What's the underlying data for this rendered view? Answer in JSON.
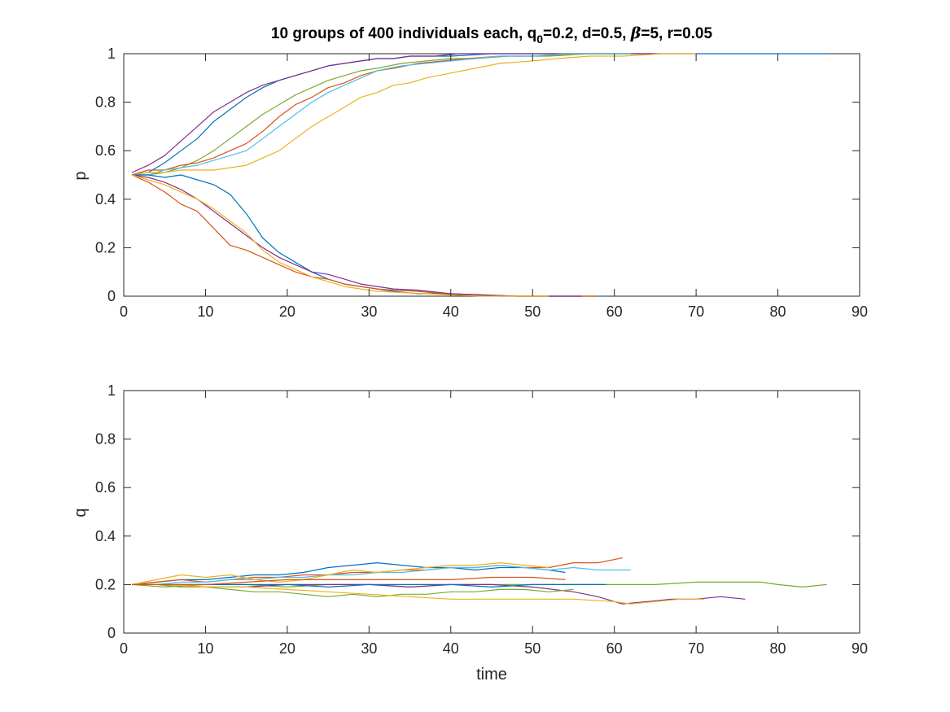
{
  "title": {
    "prefix": "10 groups of 400 individuals each, q",
    "subscript": "0",
    "middle": "=0.2, d=0.5, ",
    "beta_symbol": "β",
    "suffix": "=5, r=0.05"
  },
  "colors": [
    "#0072BD",
    "#D95319",
    "#EDB120",
    "#7E2F8E",
    "#77AC30",
    "#4DBEEE"
  ],
  "chart_data": [
    {
      "type": "line",
      "xlabel": "",
      "ylabel": "p",
      "xlim": [
        0,
        90
      ],
      "ylim": [
        0,
        1
      ],
      "xticks": [
        0,
        10,
        20,
        30,
        40,
        50,
        60,
        70,
        80,
        90
      ],
      "yticks": [
        0,
        0.2,
        0.4,
        0.6,
        0.8,
        1
      ],
      "ytick_labels": [
        "0",
        "0.2",
        "0.4",
        "0.6",
        "0.8",
        "1"
      ],
      "grid": false,
      "series": [
        {
          "color": "#0072BD",
          "x": [
            1,
            3,
            5,
            7,
            9,
            11,
            13,
            15,
            17,
            19,
            21,
            23,
            25,
            27,
            29,
            31,
            33,
            35,
            37,
            40,
            45,
            50,
            55,
            60,
            65,
            70,
            75,
            80,
            86
          ],
          "y": [
            0.5,
            0.51,
            0.55,
            0.6,
            0.65,
            0.72,
            0.77,
            0.82,
            0.86,
            0.89,
            0.91,
            0.93,
            0.95,
            0.96,
            0.97,
            0.98,
            0.98,
            0.99,
            0.99,
            0.99,
            1,
            1,
            1,
            1,
            1,
            1,
            1,
            1,
            1
          ]
        },
        {
          "color": "#7E2F8E",
          "x": [
            1,
            3,
            5,
            7,
            9,
            11,
            13,
            15,
            17,
            19,
            21,
            23,
            25,
            27,
            29,
            31,
            33,
            35,
            38,
            41,
            45,
            50,
            55,
            60,
            65
          ],
          "y": [
            0.51,
            0.54,
            0.58,
            0.64,
            0.7,
            0.76,
            0.8,
            0.84,
            0.87,
            0.89,
            0.91,
            0.93,
            0.95,
            0.96,
            0.97,
            0.98,
            0.98,
            0.99,
            0.99,
            1,
            1,
            1,
            1,
            1,
            1
          ]
        },
        {
          "color": "#77AC30",
          "x": [
            1,
            3,
            5,
            7,
            9,
            11,
            13,
            15,
            17,
            19,
            21,
            23,
            25,
            27,
            29,
            31,
            34,
            37,
            40,
            43,
            47,
            52,
            57,
            62
          ],
          "y": [
            0.5,
            0.5,
            0.51,
            0.53,
            0.56,
            0.6,
            0.65,
            0.7,
            0.75,
            0.79,
            0.83,
            0.86,
            0.89,
            0.91,
            0.93,
            0.94,
            0.96,
            0.97,
            0.98,
            0.98,
            0.99,
            0.99,
            1,
            1
          ]
        },
        {
          "color": "#D95319",
          "x": [
            1,
            3,
            5,
            7,
            9,
            11,
            13,
            15,
            17,
            19,
            21,
            23,
            25,
            27,
            29,
            31,
            33,
            36,
            39,
            42,
            46,
            50,
            55,
            60
          ],
          "y": [
            0.5,
            0.52,
            0.52,
            0.54,
            0.55,
            0.57,
            0.6,
            0.63,
            0.68,
            0.74,
            0.79,
            0.82,
            0.86,
            0.88,
            0.91,
            0.93,
            0.94,
            0.96,
            0.97,
            0.98,
            0.99,
            0.99,
            1,
            1
          ]
        },
        {
          "color": "#4DBEEE",
          "x": [
            1,
            3,
            5,
            7,
            9,
            11,
            13,
            15,
            17,
            19,
            21,
            23,
            25,
            27,
            29,
            31,
            34,
            37,
            40,
            43,
            46,
            50,
            54,
            58,
            62
          ],
          "y": [
            0.5,
            0.5,
            0.52,
            0.53,
            0.54,
            0.56,
            0.58,
            0.6,
            0.65,
            0.7,
            0.75,
            0.8,
            0.84,
            0.87,
            0.9,
            0.93,
            0.95,
            0.96,
            0.97,
            0.98,
            0.99,
            0.99,
            1,
            1,
            1
          ]
        },
        {
          "color": "#EDB120",
          "x": [
            1,
            3,
            5,
            7,
            9,
            11,
            13,
            15,
            17,
            19,
            21,
            23,
            25,
            27,
            29,
            31,
            33,
            35,
            37,
            40,
            43,
            46,
            50,
            53,
            57,
            61,
            66,
            70
          ],
          "y": [
            0.5,
            0.51,
            0.51,
            0.52,
            0.52,
            0.52,
            0.53,
            0.54,
            0.57,
            0.6,
            0.65,
            0.7,
            0.74,
            0.78,
            0.82,
            0.84,
            0.87,
            0.88,
            0.9,
            0.92,
            0.94,
            0.96,
            0.97,
            0.98,
            0.99,
            0.99,
            1,
            1
          ]
        },
        {
          "color": "#0072BD",
          "x": [
            1,
            3,
            5,
            7,
            9,
            11,
            13,
            15,
            17,
            19,
            21,
            23,
            25,
            27,
            29,
            31,
            33,
            36,
            40,
            44,
            48,
            52,
            56,
            59
          ],
          "y": [
            0.5,
            0.5,
            0.49,
            0.5,
            0.48,
            0.46,
            0.42,
            0.34,
            0.24,
            0.18,
            0.14,
            0.1,
            0.07,
            0.05,
            0.04,
            0.03,
            0.02,
            0.01,
            0.01,
            0.005,
            0,
            0,
            0,
            0
          ]
        },
        {
          "color": "#D95319",
          "x": [
            1,
            3,
            5,
            7,
            9,
            11,
            13,
            15,
            17,
            19,
            21,
            23,
            25,
            27,
            29,
            31,
            33,
            36,
            39,
            42,
            46,
            50,
            54,
            58
          ],
          "y": [
            0.5,
            0.47,
            0.43,
            0.38,
            0.35,
            0.28,
            0.21,
            0.19,
            0.16,
            0.13,
            0.1,
            0.08,
            0.07,
            0.05,
            0.04,
            0.03,
            0.025,
            0.02,
            0.01,
            0.005,
            0,
            0,
            0,
            0
          ]
        },
        {
          "color": "#7E2F8E",
          "x": [
            1,
            3,
            5,
            7,
            9,
            11,
            13,
            15,
            17,
            19,
            21,
            23,
            25,
            27,
            29,
            31,
            33,
            36,
            40,
            44,
            48,
            52,
            56
          ],
          "y": [
            0.5,
            0.49,
            0.47,
            0.44,
            0.4,
            0.35,
            0.3,
            0.25,
            0.2,
            0.16,
            0.13,
            0.1,
            0.09,
            0.07,
            0.05,
            0.04,
            0.03,
            0.025,
            0.01,
            0.005,
            0,
            0,
            0
          ]
        },
        {
          "color": "#EDB120",
          "x": [
            1,
            3,
            5,
            7,
            9,
            11,
            13,
            15,
            17,
            19,
            21,
            23,
            25,
            27,
            29,
            31,
            34,
            37,
            40,
            44,
            48,
            52
          ],
          "y": [
            0.5,
            0.48,
            0.46,
            0.43,
            0.4,
            0.36,
            0.31,
            0.26,
            0.19,
            0.14,
            0.11,
            0.08,
            0.06,
            0.04,
            0.03,
            0.02,
            0.015,
            0.01,
            0.005,
            0,
            0,
            0
          ]
        }
      ]
    },
    {
      "type": "line",
      "xlabel": "time",
      "ylabel": "q",
      "xlim": [
        0,
        90
      ],
      "ylim": [
        0,
        1
      ],
      "xticks": [
        0,
        10,
        20,
        30,
        40,
        50,
        60,
        70,
        80,
        90
      ],
      "yticks": [
        0,
        0.2,
        0.4,
        0.6,
        0.8,
        1
      ],
      "ytick_labels": [
        "0",
        "0.2",
        "0.4",
        "0.6",
        "0.8",
        "1"
      ],
      "grid": false,
      "series": [
        {
          "color": "#0072BD",
          "x": [
            1,
            4,
            7,
            10,
            13,
            16,
            19,
            22,
            25,
            28,
            31,
            34,
            37,
            40,
            43,
            46,
            49,
            52,
            54
          ],
          "y": [
            0.2,
            0.21,
            0.22,
            0.22,
            0.23,
            0.24,
            0.24,
            0.25,
            0.27,
            0.28,
            0.29,
            0.28,
            0.27,
            0.27,
            0.26,
            0.27,
            0.27,
            0.26,
            0.25
          ]
        },
        {
          "color": "#D95319",
          "x": [
            1,
            4,
            7,
            10,
            13,
            16,
            19,
            22,
            25,
            28,
            31,
            34,
            37,
            40,
            43,
            46,
            49,
            52,
            55,
            58,
            61
          ],
          "y": [
            0.2,
            0.21,
            0.22,
            0.21,
            0.22,
            0.23,
            0.23,
            0.24,
            0.24,
            0.25,
            0.25,
            0.26,
            0.26,
            0.27,
            0.27,
            0.28,
            0.27,
            0.27,
            0.29,
            0.29,
            0.31
          ]
        },
        {
          "color": "#4DBEEE",
          "x": [
            1,
            4,
            7,
            10,
            13,
            16,
            19,
            22,
            25,
            28,
            31,
            34,
            37,
            40,
            43,
            46,
            49,
            52,
            55,
            58,
            62
          ],
          "y": [
            0.2,
            0.2,
            0.21,
            0.21,
            0.22,
            0.22,
            0.23,
            0.23,
            0.24,
            0.24,
            0.25,
            0.25,
            0.26,
            0.27,
            0.27,
            0.28,
            0.27,
            0.26,
            0.27,
            0.26,
            0.26
          ]
        },
        {
          "color": "#EDB120",
          "x": [
            1,
            4,
            7,
            10,
            13,
            16,
            19,
            22,
            25,
            28,
            31,
            34,
            37,
            40,
            43,
            46,
            49,
            52
          ],
          "y": [
            0.2,
            0.22,
            0.24,
            0.23,
            0.24,
            0.22,
            0.21,
            0.22,
            0.24,
            0.26,
            0.25,
            0.26,
            0.27,
            0.28,
            0.28,
            0.29,
            0.28,
            0.27
          ]
        },
        {
          "color": "#77AC30",
          "x": [
            1,
            5,
            10,
            15,
            20,
            25,
            30,
            35,
            40,
            45,
            50,
            55,
            60,
            65,
            70,
            75,
            78,
            80,
            83,
            86
          ],
          "y": [
            0.2,
            0.19,
            0.2,
            0.2,
            0.19,
            0.2,
            0.2,
            0.19,
            0.2,
            0.2,
            0.2,
            0.2,
            0.2,
            0.2,
            0.21,
            0.21,
            0.21,
            0.2,
            0.19,
            0.2
          ]
        },
        {
          "color": "#7E2F8E",
          "x": [
            1,
            5,
            10,
            15,
            20,
            25,
            30,
            35,
            40,
            45,
            50,
            55,
            58,
            61,
            64,
            67,
            70,
            73,
            76
          ],
          "y": [
            0.2,
            0.2,
            0.19,
            0.19,
            0.2,
            0.2,
            0.2,
            0.19,
            0.2,
            0.2,
            0.19,
            0.17,
            0.15,
            0.12,
            0.13,
            0.14,
            0.14,
            0.15,
            0.14
          ]
        },
        {
          "color": "#0072BD",
          "x": [
            1,
            5,
            10,
            15,
            20,
            25,
            30,
            35,
            40,
            45,
            50,
            55,
            59
          ],
          "y": [
            0.2,
            0.2,
            0.2,
            0.2,
            0.2,
            0.19,
            0.2,
            0.2,
            0.2,
            0.19,
            0.2,
            0.2,
            0.2
          ]
        },
        {
          "color": "#77AC30",
          "x": [
            1,
            4,
            7,
            10,
            13,
            16,
            19,
            22,
            25,
            28,
            31,
            34,
            37,
            40,
            43,
            46,
            49,
            52,
            55
          ],
          "y": [
            0.2,
            0.2,
            0.19,
            0.19,
            0.18,
            0.17,
            0.17,
            0.16,
            0.15,
            0.16,
            0.15,
            0.16,
            0.16,
            0.17,
            0.17,
            0.18,
            0.18,
            0.17,
            0.18
          ]
        },
        {
          "color": "#EDB120",
          "x": [
            1,
            5,
            10,
            15,
            20,
            25,
            30,
            35,
            40,
            45,
            50,
            55,
            60,
            62,
            65,
            68,
            71
          ],
          "y": [
            0.2,
            0.2,
            0.19,
            0.19,
            0.18,
            0.17,
            0.16,
            0.15,
            0.14,
            0.14,
            0.14,
            0.14,
            0.13,
            0.12,
            0.13,
            0.14,
            0.14
          ]
        },
        {
          "color": "#D95319",
          "x": [
            1,
            5,
            10,
            15,
            20,
            25,
            30,
            35,
            40,
            45,
            50,
            54
          ],
          "y": [
            0.2,
            0.2,
            0.2,
            0.21,
            0.22,
            0.22,
            0.22,
            0.22,
            0.22,
            0.23,
            0.23,
            0.22
          ]
        }
      ]
    }
  ]
}
